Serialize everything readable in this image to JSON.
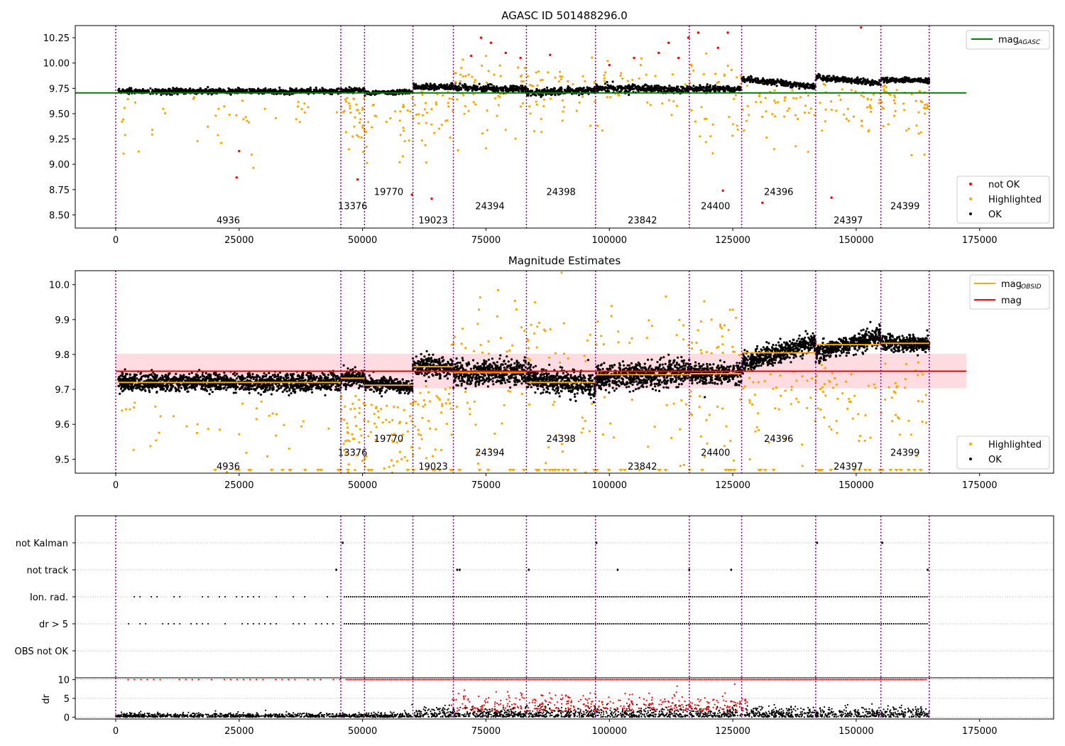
{
  "figure": {
    "title": "AGASC ID 501488296.0",
    "subplot2_title": "Magnitude Estimates"
  },
  "colors": {
    "ok": "#000000",
    "highlighted": "#ffa500",
    "not_ok": "#ff0000",
    "mag_agasc": "#008000",
    "mag": "#ff0000",
    "mag_obsid": "#ffa500",
    "obsid_line": "#800080",
    "band": "#ffc0cb"
  },
  "chart_data": [
    {
      "type": "scatter",
      "name": "top",
      "xlim": [
        -8200,
        190000
      ],
      "ylim": [
        8.37,
        10.37
      ],
      "xticks": [
        0,
        25000,
        50000,
        75000,
        100000,
        125000,
        150000,
        175000
      ],
      "yticks": [
        8.5,
        8.75,
        9.0,
        9.25,
        9.5,
        9.75,
        10.0,
        10.25
      ],
      "ytick_labels": [
        "8.50",
        "8.75",
        "9.00",
        "9.25",
        "9.50",
        "9.75",
        "10.00",
        "10.25"
      ],
      "obsid_boundaries": [
        0,
        45600,
        50400,
        60200,
        68400,
        83200,
        97200,
        116200,
        126800,
        141800,
        155000,
        164800
      ],
      "obsid_labels": [
        {
          "text": "4936",
          "x": 22800,
          "y": 8.45
        },
        {
          "text": "13376",
          "x": 48000,
          "y": 8.59
        },
        {
          "text": "19770",
          "x": 55300,
          "y": 8.73
        },
        {
          "text": "19023",
          "x": 64300,
          "y": 8.45
        },
        {
          "text": "24394",
          "x": 75800,
          "y": 8.59
        },
        {
          "text": "24398",
          "x": 90200,
          "y": 8.73
        },
        {
          "text": "23842",
          "x": 106700,
          "y": 8.45
        },
        {
          "text": "24400",
          "x": 121500,
          "y": 8.59
        },
        {
          "text": "24396",
          "x": 134300,
          "y": 8.73
        },
        {
          "text": "24397",
          "x": 148400,
          "y": 8.45
        },
        {
          "text": "24399",
          "x": 159900,
          "y": 8.59
        }
      ],
      "segments": [
        {
          "x": [
            500,
            45600
          ],
          "mean": 9.72,
          "spread": 0.045,
          "slope": 0
        },
        {
          "x": [
            45600,
            50400
          ],
          "mean": 9.73,
          "spread": 0.04,
          "slope": 0
        },
        {
          "x": [
            50400,
            60200
          ],
          "mean": 9.71,
          "spread": 0.035,
          "slope": 0.02
        },
        {
          "x": [
            60200,
            68400
          ],
          "mean": 9.765,
          "spread": 0.05,
          "slope": 0
        },
        {
          "x": [
            68400,
            83200
          ],
          "mean": 9.75,
          "spread": 0.06,
          "slope": -0.02
        },
        {
          "x": [
            83200,
            97200
          ],
          "mean": 9.72,
          "spread": 0.06,
          "slope": 0.04
        },
        {
          "x": [
            97200,
            116200
          ],
          "mean": 9.745,
          "spread": 0.065,
          "slope": -0.03
        },
        {
          "x": [
            116200,
            126800
          ],
          "mean": 9.745,
          "spread": 0.05,
          "slope": 0
        },
        {
          "x": [
            126800,
            141800
          ],
          "mean": 9.805,
          "spread": 0.05,
          "slope": -0.12
        },
        {
          "x": [
            141800,
            155000
          ],
          "mean": 9.83,
          "spread": 0.045,
          "slope": -0.1
        },
        {
          "x": [
            155000,
            164800
          ],
          "mean": 9.83,
          "spread": 0.04,
          "slope": 0
        }
      ],
      "mag_agasc": 9.705,
      "legend": {
        "line": "mag_AGASC",
        "markers": [
          "not OK",
          "Highlighted",
          "OK"
        ],
        "position_line": "upper right",
        "position_markers": "lower right"
      }
    },
    {
      "type": "scatter",
      "name": "middle",
      "xlim": [
        -8200,
        190000
      ],
      "ylim": [
        9.46,
        10.04
      ],
      "xticks": [
        0,
        25000,
        50000,
        75000,
        100000,
        125000,
        150000,
        175000
      ],
      "yticks": [
        9.5,
        9.6,
        9.7,
        9.8,
        9.9,
        10.0
      ],
      "ytick_labels": [
        "9.5",
        "9.6",
        "9.7",
        "9.8",
        "9.9",
        "10.0"
      ],
      "mag": 9.752,
      "mag_band": [
        9.703,
        9.802
      ],
      "mag_obsid": [
        9.72,
        9.732,
        9.712,
        9.765,
        9.748,
        9.72,
        9.742,
        9.745,
        9.805,
        9.828,
        9.832
      ],
      "obsid_labels": [
        {
          "text": "4936",
          "x": 22800,
          "y": 9.48
        },
        {
          "text": "13376",
          "x": 48000,
          "y": 9.52
        },
        {
          "text": "19770",
          "x": 55300,
          "y": 9.56
        },
        {
          "text": "19023",
          "x": 64300,
          "y": 9.48
        },
        {
          "text": "24394",
          "x": 75800,
          "y": 9.52
        },
        {
          "text": "24398",
          "x": 90200,
          "y": 9.56
        },
        {
          "text": "23842",
          "x": 106700,
          "y": 9.48
        },
        {
          "text": "24400",
          "x": 121500,
          "y": 9.52
        },
        {
          "text": "24396",
          "x": 134300,
          "y": 9.56
        },
        {
          "text": "24397",
          "x": 148400,
          "y": 9.48
        },
        {
          "text": "24399",
          "x": 159900,
          "y": 9.52
        }
      ],
      "legend": {
        "lines": [
          "mag_OBSID",
          "mag"
        ],
        "markers": [
          "Highlighted",
          "OK"
        ],
        "position_lines": "upper right",
        "position_markers": "lower right"
      }
    },
    {
      "type": "scatter",
      "name": "flags",
      "xlim": [
        -8200,
        190000
      ],
      "categories": [
        "not Kalman",
        "not track",
        "Ion. rad.",
        "dr > 5",
        "OBS not OK"
      ],
      "ylabel": ""
    },
    {
      "type": "scatter",
      "name": "dr",
      "xlim": [
        -8200,
        190000
      ],
      "ylim": [
        -0.5,
        10.5
      ],
      "yticks": [
        0,
        5,
        10
      ],
      "ytick_labels": [
        "0",
        "5",
        "10"
      ],
      "ylabel": "dr",
      "xticks": [
        0,
        25000,
        50000,
        75000,
        100000,
        125000,
        150000,
        175000
      ]
    }
  ]
}
